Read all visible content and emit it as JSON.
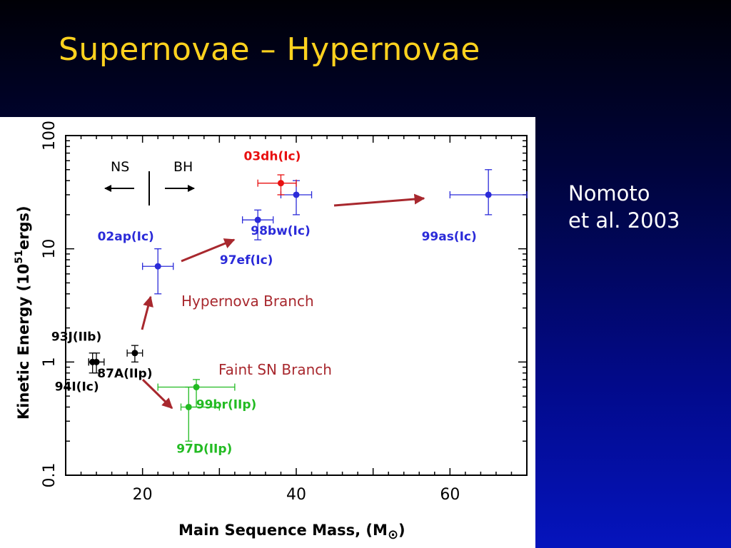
{
  "slide": {
    "title": "Supernovae – Hypernovae",
    "citation_line1": "Nomoto",
    "citation_line2": "et al. 2003"
  },
  "chart_data": {
    "type": "scatter",
    "xlabel": "Main Sequence Mass, (M",
    "xlabel_symbol": "⊙",
    "xlabel_close": ")",
    "ylabel_main": "Kinetic Energy  (10",
    "ylabel_sup": "51",
    "ylabel_unit": "ergs)",
    "xlim": [
      10,
      70
    ],
    "ylim": [
      0.1,
      100
    ],
    "yscale": "log",
    "x_ticks": [
      20,
      40,
      60
    ],
    "x_tick_labels": [
      "20",
      "40",
      "60"
    ],
    "y_ticks": [
      0.1,
      1,
      10,
      100
    ],
    "y_tick_labels": [
      "0.1",
      "1",
      "10",
      "100"
    ],
    "grid": false,
    "series": [
      {
        "color": "#000000",
        "points": [
          {
            "label": "93J(IIb)",
            "x": 14,
            "y": 1.0,
            "xerr": [
              1,
              1
            ],
            "yerr": [
              0.8,
              1.2
            ]
          },
          {
            "label": "94I(Ic)",
            "x": 13.5,
            "y": 1.0,
            "xerr": [
              0.5,
              0.5
            ],
            "yerr": [
              0.8,
              1.2
            ]
          },
          {
            "label": "87A(IIp)",
            "x": 19,
            "y": 1.2,
            "xerr": [
              1,
              1
            ],
            "yerr": [
              1.0,
              1.4
            ]
          }
        ]
      },
      {
        "color": "#2b2bd9",
        "points": [
          {
            "label": "02ap(Ic)",
            "x": 22,
            "y": 7,
            "xerr": [
              2,
              2
            ],
            "yerr": [
              4,
              10
            ]
          },
          {
            "label": "97ef(Ic)",
            "x": 35,
            "y": 18,
            "xerr": [
              2,
              2
            ],
            "yerr": [
              12,
              22
            ]
          },
          {
            "label": "98bw(Ic)",
            "x": 40,
            "y": 30,
            "xerr": [
              2,
              2
            ],
            "yerr": [
              20,
              40
            ]
          },
          {
            "label": "99as(Ic)",
            "x": 65,
            "y": 30,
            "xerr": [
              5,
              5
            ],
            "yerr": [
              20,
              50
            ]
          }
        ]
      },
      {
        "color": "#e81010",
        "points": [
          {
            "label": "03dh(Ic)",
            "x": 38,
            "y": 38,
            "xerr": [
              3,
              2
            ],
            "yerr": [
              30,
              45
            ]
          }
        ]
      },
      {
        "color": "#22bb22",
        "points": [
          {
            "label": "99br(IIp)",
            "x": 27,
            "y": 0.6,
            "xerr": [
              5,
              5
            ],
            "yerr": [
              0.4,
              0.7
            ]
          },
          {
            "label": "97D(IIp)",
            "x": 26,
            "y": 0.4,
            "xerr": [
              1,
              4
            ],
            "yerr": [
              0.2,
              0.6
            ]
          }
        ]
      }
    ],
    "annotations": {
      "hypernova_branch": "Hypernova Branch",
      "faint_sn_branch": "Faint SN Branch",
      "ns": "NS",
      "bh": "BH",
      "branch_color": "#a8282e"
    }
  }
}
